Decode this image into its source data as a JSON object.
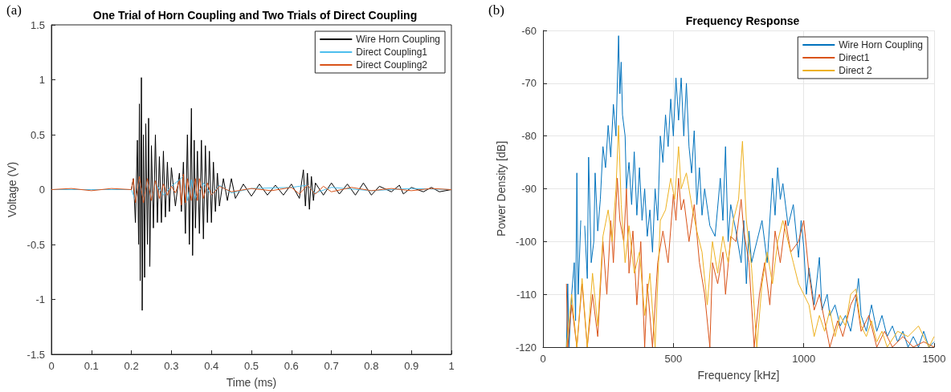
{
  "chart_data": [
    {
      "type": "line",
      "title": "One Trial of Horn Coupling and Two Trials of Direct Coupling",
      "xlabel": "Time (ms)",
      "ylabel": "Voltage (V)",
      "annotations": [
        "(a)"
      ],
      "xlim": [
        0,
        1
      ],
      "xticks": [
        0,
        0.1,
        0.2,
        0.3,
        0.4,
        0.5,
        0.6,
        0.7,
        0.8,
        0.9,
        1
      ],
      "ylim": [
        -1.5,
        1.5
      ],
      "yticks": [
        -1.5,
        -1,
        -0.5,
        0,
        0.5,
        1,
        1.5
      ],
      "grid": false,
      "legend": "top right",
      "marker": "none",
      "line_style": "solid",
      "series": [
        {
          "name": "Wire Horn Coupling",
          "color": "#000000",
          "x": [
            0.2,
            0.205,
            0.21,
            0.215,
            0.218,
            0.22,
            0.222,
            0.225,
            0.227,
            0.23,
            0.233,
            0.236,
            0.24,
            0.243,
            0.246,
            0.25,
            0.255,
            0.26,
            0.265,
            0.27,
            0.275,
            0.28,
            0.285,
            0.29,
            0.295,
            0.3,
            0.31,
            0.32,
            0.325,
            0.33,
            0.335,
            0.34,
            0.345,
            0.35,
            0.353,
            0.357,
            0.36,
            0.365,
            0.37,
            0.375,
            0.38,
            0.385,
            0.39,
            0.395,
            0.4,
            0.405,
            0.41,
            0.415,
            0.42,
            0.43,
            0.44,
            0.45,
            0.46,
            0.48,
            0.5,
            0.52,
            0.54,
            0.56,
            0.58,
            0.6,
            0.62,
            0.63,
            0.635,
            0.64,
            0.645,
            0.65,
            0.655,
            0.66,
            0.68,
            0.7,
            0.72,
            0.74,
            0.76,
            0.78,
            0.8,
            0.82,
            0.85,
            0.87,
            0.88,
            0.9,
            0.93,
            0.95,
            0.97,
            1
          ],
          "values": [
            0,
            0.1,
            -0.3,
            0.45,
            -0.5,
            0.78,
            -0.83,
            1.02,
            -1.1,
            0.5,
            -0.8,
            0.6,
            -0.5,
            0.65,
            -0.7,
            0.4,
            -0.35,
            0.5,
            -0.3,
            0.3,
            -0.3,
            0.35,
            -0.25,
            0.25,
            -0.2,
            0.2,
            -0.15,
            0.15,
            -0.2,
            0.25,
            -0.4,
            0.5,
            -0.5,
            0.74,
            -0.6,
            0.45,
            -0.35,
            0.35,
            -0.4,
            0.45,
            -0.45,
            0.4,
            -0.3,
            0.35,
            -0.3,
            0.25,
            -0.2,
            0.15,
            -0.15,
            0.1,
            -0.1,
            0.1,
            -0.08,
            0.05,
            -0.06,
            0.05,
            -0.05,
            0.04,
            -0.05,
            0.05,
            -0.08,
            0.18,
            -0.15,
            0.15,
            -0.18,
            0.12,
            -0.1,
            0.06,
            -0.05,
            0.06,
            -0.04,
            0.05,
            -0.05,
            0.06,
            -0.05,
            0.03,
            -0.02,
            0.04,
            -0.04,
            0.02,
            -0.02,
            0.02,
            -0.02,
            0
          ]
        },
        {
          "name": "Direct Coupling1",
          "color": "#4dbeee",
          "x": [
            0,
            0.1,
            0.2,
            0.21,
            0.22,
            0.23,
            0.24,
            0.25,
            0.26,
            0.28,
            0.3,
            0.33,
            0.34,
            0.35,
            0.36,
            0.38,
            0.4,
            0.42,
            0.45,
            0.5,
            0.6,
            0.64,
            0.66,
            0.7,
            0.8,
            0.9,
            1
          ],
          "values": [
            0,
            0,
            0,
            -0.1,
            0.1,
            -0.1,
            0.08,
            -0.08,
            0.06,
            -0.05,
            0.03,
            0.12,
            -0.1,
            0.09,
            -0.08,
            0.06,
            -0.05,
            0.04,
            -0.03,
            0.01,
            0.02,
            0.04,
            -0.03,
            0.02,
            -0.01,
            0.01,
            0
          ]
        },
        {
          "name": "Direct Coupling2",
          "color": "#d95319",
          "x": [
            0,
            0.05,
            0.1,
            0.15,
            0.2,
            0.205,
            0.21,
            0.22,
            0.23,
            0.24,
            0.25,
            0.26,
            0.27,
            0.28,
            0.29,
            0.3,
            0.31,
            0.32,
            0.325,
            0.33,
            0.335,
            0.34,
            0.35,
            0.36,
            0.365,
            0.37,
            0.38,
            0.39,
            0.4,
            0.42,
            0.45,
            0.5,
            0.55,
            0.6,
            0.62,
            0.64,
            0.66,
            0.68,
            0.7,
            0.75,
            0.8,
            0.85,
            0.9,
            0.95,
            1
          ],
          "values": [
            0,
            0.01,
            -0.01,
            0.01,
            0,
            0.1,
            -0.12,
            0.12,
            -0.12,
            0.1,
            -0.1,
            0.08,
            -0.08,
            0.05,
            -0.05,
            0.03,
            -0.03,
            0.08,
            -0.14,
            0.14,
            -0.12,
            0.1,
            -0.1,
            0.1,
            -0.1,
            0.1,
            -0.08,
            0.06,
            -0.05,
            0.03,
            -0.02,
            0.01,
            -0.01,
            0.02,
            -0.04,
            0.04,
            -0.04,
            0.03,
            -0.02,
            0.02,
            -0.01,
            0.01,
            -0.01,
            0.01,
            0
          ]
        }
      ]
    },
    {
      "type": "line",
      "title": "Frequency Response",
      "xlabel": "Frequency [kHz]",
      "ylabel": "Power Density [dB]",
      "annotations": [
        "(b)"
      ],
      "xlim": [
        0,
        1500
      ],
      "xticks": [
        0,
        500,
        1000,
        1500
      ],
      "ylim": [
        -120,
        -60
      ],
      "yticks": [
        -120,
        -110,
        -100,
        -90,
        -80,
        -70,
        -60
      ],
      "grid": true,
      "legend": "top right",
      "marker": "none",
      "line_style": "solid",
      "series": [
        {
          "name": "Wire Horn Coupling",
          "color": "#0072bd",
          "x": [
            90,
            95,
            100,
            110,
            120,
            125,
            130,
            135,
            145,
            155,
            160,
            170,
            175,
            185,
            195,
            200,
            210,
            220,
            230,
            240,
            250,
            260,
            270,
            280,
            290,
            295,
            300,
            305,
            315,
            320,
            330,
            340,
            350,
            360,
            370,
            380,
            390,
            400,
            410,
            420,
            430,
            440,
            450,
            460,
            470,
            480,
            490,
            500,
            510,
            520,
            530,
            540,
            550,
            560,
            570,
            580,
            590,
            600,
            610,
            620,
            640,
            660,
            680,
            690,
            700,
            710,
            720,
            740,
            760,
            770,
            780,
            790,
            800,
            820,
            840,
            860,
            880,
            890,
            900,
            910,
            920,
            940,
            960,
            980,
            990,
            1000,
            1010,
            1020,
            1040,
            1060,
            1070,
            1090,
            1100,
            1120,
            1140,
            1160,
            1180,
            1200,
            1210,
            1220,
            1240,
            1260,
            1280,
            1300,
            1320,
            1340,
            1360,
            1380,
            1400,
            1420,
            1440,
            1460,
            1480,
            1500
          ],
          "values": [
            -120,
            -108,
            -120,
            -110,
            -104,
            -115,
            -87,
            -110,
            -96,
            null,
            -97,
            -107,
            -84,
            -104,
            -100,
            -87,
            -98,
            -92,
            -82,
            -86,
            -78,
            -84,
            -74,
            -80,
            -61,
            -72,
            -66,
            -76,
            -80,
            -90,
            -85,
            -93,
            -83,
            -95,
            -86,
            -96,
            -90,
            -99,
            -94,
            -102,
            -90,
            -96,
            -80,
            -85,
            -76,
            -82,
            -73,
            -80,
            -69,
            -77,
            -69,
            -80,
            -70,
            -82,
            -87,
            -79,
            -93,
            -86,
            -95,
            -90,
            -97,
            -99,
            -88,
            -96,
            -82,
            -100,
            -93,
            -98,
            -104,
            -96,
            -108,
            -98,
            -104,
            -100,
            -96,
            -104,
            -88,
            -95,
            -86,
            -92,
            -89,
            -97,
            -93,
            -103,
            -96,
            -101,
            -110,
            -105,
            -112,
            -103,
            -113,
            -110,
            -114,
            -112,
            -116,
            -114,
            -117,
            -111,
            -107,
            -114,
            -117,
            -112,
            -117,
            -114,
            -118,
            -116,
            -119,
            -117,
            -120,
            -118,
            -120,
            -117,
            -120,
            -119
          ]
        },
        {
          "name": "Direct1",
          "color": "#d95319",
          "x": [
            90,
            95,
            110,
            130,
            150,
            170,
            190,
            210,
            230,
            245,
            260,
            270,
            285,
            295,
            310,
            320,
            330,
            345,
            360,
            375,
            390,
            400,
            420,
            440,
            460,
            480,
            500,
            510,
            520,
            530,
            540,
            560,
            580,
            600,
            620,
            640,
            650,
            670,
            690,
            700,
            720,
            740,
            760,
            770,
            790,
            810,
            830,
            850,
            870,
            890,
            910,
            930,
            950,
            980,
            1000,
            1020,
            1040,
            1060,
            1080,
            1100,
            1130,
            1150,
            1180,
            1200,
            1220,
            1250,
            1280,
            1310,
            1340,
            1380,
            1420,
            1460,
            1500
          ],
          "values": [
            -108,
            -120,
            -112,
            -120,
            -108,
            -120,
            -110,
            -118,
            -100,
            -110,
            -96,
            -104,
            -88,
            -96,
            -100,
            -90,
            -106,
            -98,
            -112,
            -100,
            -120,
            -108,
            -120,
            -104,
            -98,
            -104,
            -91,
            -96,
            -88,
            -94,
            -92,
            -100,
            -93,
            -104,
            -110,
            -120,
            -104,
            -108,
            -102,
            -110,
            -99,
            -100,
            -92,
            -98,
            -104,
            -120,
            -110,
            -104,
            -112,
            -98,
            -104,
            -96,
            -102,
            -100,
            -96,
            -106,
            -113,
            -110,
            -115,
            -120,
            -115,
            -118,
            -112,
            -110,
            -117,
            -114,
            -120,
            -117,
            -120,
            -118,
            -120,
            -119,
            -120
          ]
        },
        {
          "name": "Direct 2",
          "color": "#edb120",
          "x": [
            90,
            110,
            130,
            150,
            170,
            190,
            210,
            230,
            250,
            265,
            280,
            290,
            300,
            315,
            330,
            350,
            370,
            390,
            410,
            430,
            450,
            470,
            490,
            505,
            520,
            530,
            550,
            570,
            590,
            610,
            630,
            650,
            670,
            690,
            710,
            730,
            750,
            765,
            780,
            800,
            820,
            840,
            860,
            880,
            900,
            920,
            940,
            960,
            980,
            1000,
            1020,
            1040,
            1060,
            1080,
            1100,
            1120,
            1140,
            1160,
            1180,
            1200,
            1220,
            1240,
            1260,
            1280,
            1300,
            1320,
            1360,
            1400,
            1440,
            1480,
            1500
          ],
          "values": [
            -120,
            -110,
            -120,
            -107,
            -120,
            -106,
            -116,
            -99,
            -94,
            -100,
            -90,
            -78,
            -93,
            -104,
            -97,
            -106,
            -102,
            -114,
            -106,
            -120,
            -96,
            -94,
            -88,
            -92,
            -82,
            -90,
            -87,
            -93,
            -98,
            -102,
            -112,
            -100,
            -106,
            -99,
            -104,
            -96,
            -92,
            -81,
            -96,
            -105,
            -120,
            -108,
            -102,
            -108,
            -100,
            -96,
            -100,
            -104,
            -108,
            -110,
            -112,
            -118,
            -114,
            -117,
            -113,
            -118,
            -114,
            -116,
            -110,
            -109,
            -116,
            -118,
            -115,
            -119,
            -117,
            -120,
            -117,
            -118,
            -116,
            -120,
            -118
          ]
        }
      ]
    }
  ]
}
